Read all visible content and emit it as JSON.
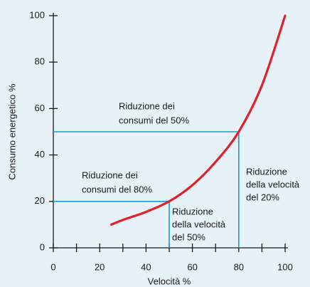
{
  "chart_data": {
    "type": "line",
    "xlabel": "Velocità %",
    "ylabel": "Consumo energetico %",
    "x": [
      25,
      30,
      40,
      50,
      60,
      70,
      80,
      90,
      100
    ],
    "series": [
      {
        "color": "#e3202a",
        "values": [
          10,
          12,
          15.5,
          20,
          27,
          37,
          50,
          70,
          100
        ]
      }
    ],
    "xlim": [
      0,
      100
    ],
    "ylim": [
      0,
      100
    ],
    "xticks": [
      0,
      20,
      40,
      60,
      80,
      100
    ],
    "xminor_ticks": [
      10,
      30,
      50,
      70,
      90
    ],
    "yticks": [
      0,
      20,
      40,
      60,
      80,
      100
    ],
    "guide_color": "#1a9ad6",
    "guides": [
      {
        "x": 80,
        "y": 50,
        "y_label": [
          "Riduzione dei",
          "consumi del 50%"
        ],
        "x_label": [
          "Riduzione",
          "della velocità",
          "del 20%"
        ]
      },
      {
        "x": 50,
        "y": 20,
        "y_label": [
          "Riduzione dei",
          "consumi del 80%"
        ],
        "x_label": [
          "Riduzione",
          "della velocità",
          "del 50%"
        ]
      }
    ]
  }
}
